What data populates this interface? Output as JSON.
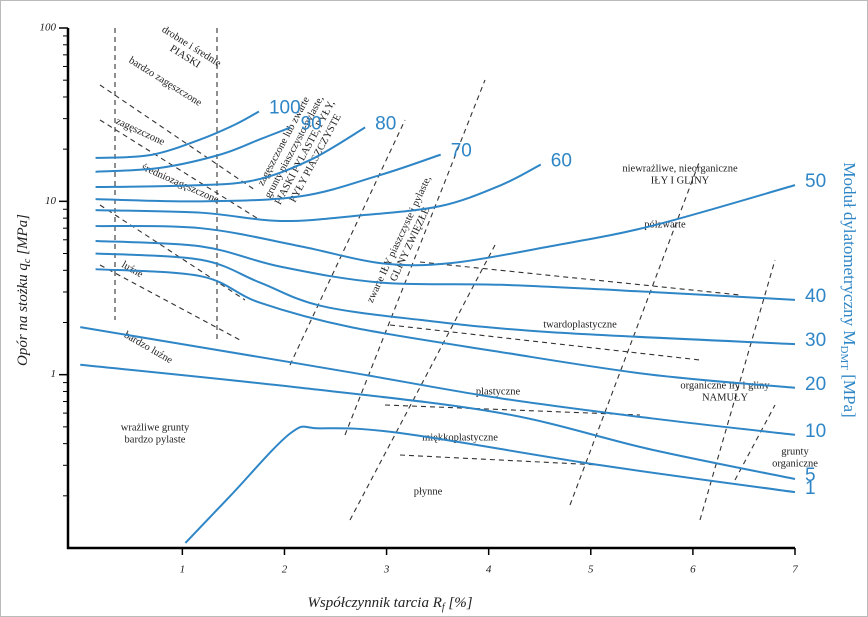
{
  "chart_data": {
    "type": "line",
    "xlabel": "Współczynnik tarcia R",
    "xlabel_sub": "f",
    "xlabel_end": " [%]",
    "ylabel": "Opór na stożku q",
    "ylabel_sub": "c",
    "ylabel_end": " [MPa]",
    "y2label": "Moduł dylatometryczny M",
    "y2label_sub": "DMT",
    "y2label_end": " [MPa]",
    "log_y": true,
    "xlim": [
      -0.12,
      7.0
    ],
    "xticks": [
      1,
      2,
      3,
      4,
      5,
      6,
      7
    ],
    "ylim": [
      0.1,
      100
    ],
    "yticks": [
      1,
      10,
      100
    ],
    "yminor": [
      0.2,
      0.3,
      0.4,
      0.5,
      0.6,
      0.7,
      0.8,
      0.9,
      2,
      3,
      4,
      5,
      6,
      7,
      8,
      9,
      20,
      30,
      40,
      50,
      60,
      70,
      80,
      90
    ],
    "series": [
      {
        "name": "100",
        "color": "#2f86c6",
        "x": [
          0.15,
          0.69,
          1.18,
          1.52,
          1.75
        ],
        "values": [
          17.8,
          18.5,
          22.8,
          27.8,
          33
        ]
      },
      {
        "name": "90",
        "color": "#2f86c6",
        "x": [
          0.15,
          0.78,
          1.37,
          1.76,
          2.06
        ],
        "values": [
          14.8,
          15.6,
          18.6,
          22.8,
          26.7
        ]
      },
      {
        "name": "80",
        "color": "#2f86c6",
        "x": [
          0.15,
          0.98,
          1.67,
          2.25,
          2.79
        ],
        "values": [
          12.1,
          12.3,
          13.1,
          17.3,
          26.7
        ]
      },
      {
        "name": "70",
        "color": "#2f86c6",
        "x": [
          0.15,
          1.18,
          2.16,
          2.94,
          3.53
        ],
        "values": [
          10.3,
          10,
          10.7,
          14.2,
          18.6
        ]
      },
      {
        "name": "60",
        "color": "#2f86c6",
        "x": [
          0.15,
          1.18,
          1.96,
          2.75,
          3.53,
          4.12,
          4.51
        ],
        "values": [
          8.9,
          8.6,
          7.7,
          8.3,
          9.4,
          12.4,
          16.3
        ]
      },
      {
        "name": "50",
        "color": "#2f86c6",
        "x": [
          0.15,
          1.18,
          2.16,
          2.94,
          3.63,
          4.6,
          5.59,
          7.0
        ],
        "values": [
          7.2,
          7,
          5.5,
          4.4,
          4.4,
          5.5,
          7.2,
          12.4
        ]
      },
      {
        "name": "40",
        "color": "#2f86c6",
        "x": [
          0.15,
          1.18,
          1.96,
          2.94,
          4.12,
          5.59,
          7.0
        ],
        "values": [
          5.9,
          5.5,
          4.2,
          3.4,
          3.3,
          3.0,
          2.7
        ]
      },
      {
        "name": "30",
        "color": "#2f86c6",
        "x": [
          0.15,
          1.18,
          1.76,
          2.35,
          3.33,
          4.6,
          7.0
        ],
        "values": [
          5.0,
          4.6,
          3.4,
          2.5,
          2.07,
          1.76,
          1.5
        ]
      },
      {
        "name": "20",
        "color": "#2f86c6",
        "x": [
          0.15,
          1.18,
          1.76,
          2.65,
          4.12,
          5.59,
          7.0
        ],
        "values": [
          4.06,
          3.7,
          2.6,
          1.88,
          1.35,
          1.0,
          0.84
        ]
      },
      {
        "name": "10",
        "color": "#2f86c6",
        "x": [
          0.0,
          1.18,
          2.65,
          4.12,
          5.59,
          7.0
        ],
        "values": [
          1.88,
          1.44,
          1.03,
          0.73,
          0.56,
          0.45
        ]
      },
      {
        "name": "5",
        "color": "#2f86c6",
        "x": [
          0.0,
          2.16,
          4.12,
          5.59,
          7.0
        ],
        "values": [
          1.14,
          0.84,
          0.6,
          0.37,
          0.25
        ]
      },
      {
        "name": "1",
        "color": "#2f86c6",
        "x": [
          1.03,
          1.47,
          2.06,
          2.35,
          3.14,
          5.1,
          7.0
        ],
        "values": [
          0.107,
          0.2,
          0.46,
          0.49,
          0.46,
          0.3,
          0.21
        ]
      }
    ],
    "annotations": [
      [
        "drobne i średnie",
        "PIASKI"
      ],
      [
        "bardzo zagęszczone"
      ],
      [
        "zagęszczone"
      ],
      [
        "średniozagęszczone"
      ],
      [
        "luźne"
      ],
      [
        "bardzo luźne"
      ],
      [
        "zagęszczone lub zwarte",
        "grunty piaszczysto-pylaste,",
        "PIASKI PYLASTE, PYŁY,",
        "PYŁY PIASZCZYSTE"
      ],
      [
        "zwarte IŁY piaszczyste i pylaste,",
        "GLINY ZWIĘZŁE"
      ],
      [
        "niewrażliwe, nieorganiczne",
        "IŁY I GLINY"
      ],
      [
        "półzwarte"
      ],
      [
        "twardoplastyczne"
      ],
      [
        "plastyczne"
      ],
      [
        "organiczne iły i gliny",
        "NAMUŁY"
      ],
      [
        "miękkoplastyczne"
      ],
      [
        "płynne"
      ],
      [
        "wrażliwe grunty",
        "bardzo pylaste"
      ],
      [
        "grunty",
        "organiczne"
      ]
    ]
  }
}
